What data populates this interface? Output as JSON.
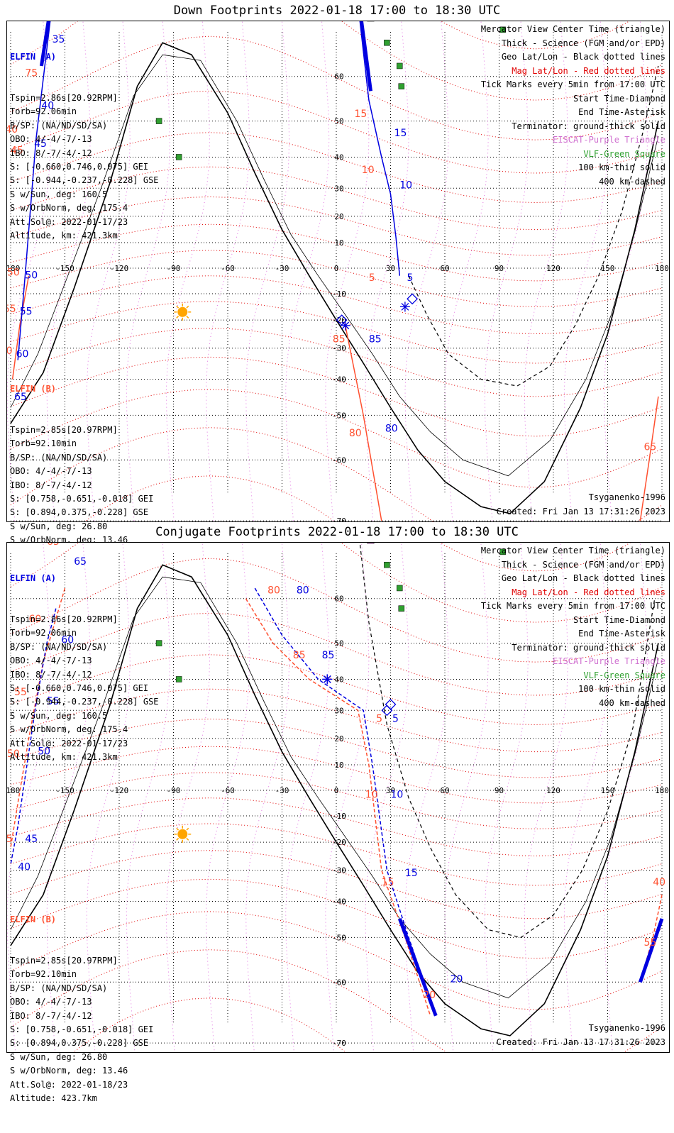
{
  "panels": [
    {
      "title": "Down Footprints 2022-01-18 17:00 to 18:30 UTC",
      "sat_a": {
        "name": "ELFIN (A)",
        "lines": [
          "Tspin=2.86s[20.92RPM]",
          "Torb=92.06min",
          "B/SP: (NA/ND/SD/SA)",
          "OBO: 4/-4/-7/-13",
          "IBO: 8/-7/-4/-12",
          "S: [-0.660,0.746,0.075] GEI",
          "S: [-0.944,-0.237,-0.228] GSE",
          "S w/Sun, deg: 160.5",
          "S w/OrbNorm, deg: 175.4",
          "Att.Sol@: 2022-01-17/23",
          "Altitude, km: 421.3km"
        ]
      },
      "sat_b": {
        "name": "ELFIN (B)",
        "lines": [
          "Tspin=2.85s[20.97RPM]",
          "Torb=92.10min",
          "B/SP: (NA/ND/SD/SA)",
          "OBO: 4/-4/-7/-13",
          "IBO: 8/-7/-4/-12",
          "S: [0.758,-0.651,-0.018] GEI",
          "S: [0.894,0.375,-0.228] GSE",
          "S w/Sun, deg: 26.80",
          "S w/OrbNorm, deg: 13.46",
          "Att.Sol@: 2022-01-18/23",
          "Altitude: 423.7km"
        ]
      },
      "model": "Tsyganenko-1996",
      "created": "Created: Fri Jan 13 17:31:26 2023"
    },
    {
      "title": "Conjugate Footprints 2022-01-18 17:00 to 18:30 UTC",
      "sat_a": {
        "name": "ELFIN (A)",
        "lines": [
          "Tspin=2.86s[20.92RPM]",
          "Torb=92.06min",
          "B/SP: (NA/ND/SD/SA)",
          "OBO: 4/-4/-7/-13",
          "IBO: 8/-7/-4/-12",
          "S: [-0.660,0.746,0.075] GEI",
          "S: [-0.944,-0.237,-0.228] GSE",
          "S w/Sun, deg: 160.5",
          "S w/OrbNorm, deg: 175.4",
          "Att.Sol@: 2022-01-17/23",
          "Altitude, km: 421.3km"
        ]
      },
      "sat_b": {
        "name": "ELFIN (B)",
        "lines": [
          "Tspin=2.85s[20.97RPM]",
          "Torb=92.10min",
          "B/SP: (NA/ND/SD/SA)",
          "OBO: 4/-4/-7/-13",
          "IBO: 8/-7/-4/-12",
          "S: [0.758,-0.651,-0.018] GEI",
          "S: [0.894,0.375,-0.228] GSE",
          "S w/Sun, deg: 26.80",
          "S w/OrbNorm, deg: 13.46",
          "Att.Sol@: 2022-01-18/23",
          "Altitude: 423.7km"
        ]
      },
      "model": "Tsyganenko-1996",
      "created": "Created: Fri Jan 13 17:31:26 2023"
    }
  ],
  "legend": [
    {
      "text": "Mercator View Center Time (triangle)",
      "color": "#000000"
    },
    {
      "text": "Thick - Science (FGM and/or EPD)",
      "color": "#000000"
    },
    {
      "text": "Geo Lat/Lon - Black dotted lines",
      "color": "#000000"
    },
    {
      "text": "Mag Lat/Lon - Red dotted lines",
      "color": "#e00000"
    },
    {
      "text": "Tick Marks every 5min from 17:00 UTC",
      "color": "#000000"
    },
    {
      "text": "Start Time-Diamond",
      "color": "#000000"
    },
    {
      "text": "End Time-Asterisk",
      "color": "#000000"
    },
    {
      "text": "Terminator: ground-thick solid",
      "color": "#000000"
    },
    {
      "text": "EISCAT-Purple Triangle",
      "color": "#d070d0"
    },
    {
      "text": "VLF-Green Square",
      "color": "#30a030"
    },
    {
      "text": "100 km-thin solid",
      "color": "#000000"
    },
    {
      "text": "400 km-dashed",
      "color": "#000000"
    }
  ],
  "axes": {
    "lon_ticks": [
      "-180",
      "-150",
      "-120",
      "-90",
      "-60",
      "-30",
      "0",
      "30",
      "60",
      "90",
      "120",
      "150",
      "180"
    ],
    "lat_ticks": [
      "70",
      "60",
      "50",
      "40",
      "30",
      "20",
      "10",
      "0",
      "-10",
      "-20",
      "-30",
      "-40",
      "-50",
      "-60",
      "-70"
    ]
  },
  "colors": {
    "elfin_a": "#0000e0",
    "elfin_b": "#ff5030",
    "mag_grid": "#e00000",
    "geo_grid": "#000000",
    "eiscat": "#d070d0",
    "vlf": "#30a030",
    "sun": "#ffa500"
  },
  "stations": {
    "eiscat": [
      [
        19,
        69.6
      ],
      [
        27,
        77
      ]
    ],
    "vlf": [
      [
        -109,
        71
      ],
      [
        -98,
        50
      ],
      [
        -87,
        40
      ],
      [
        28,
        66
      ],
      [
        35,
        62
      ],
      [
        36,
        58
      ],
      [
        92,
        68
      ]
    ]
  },
  "down": {
    "terminator": [
      [
        -180,
        -52
      ],
      [
        -162,
        -38
      ],
      [
        -145,
        -8
      ],
      [
        -125,
        32
      ],
      [
        -110,
        58
      ],
      [
        -96,
        66
      ],
      [
        -80,
        64
      ],
      [
        -60,
        52
      ],
      [
        -45,
        35
      ],
      [
        -30,
        15
      ],
      [
        -15,
        -3
      ],
      [
        0,
        -20
      ],
      [
        15,
        -35
      ],
      [
        30,
        -48
      ],
      [
        45,
        -58
      ],
      [
        60,
        -64
      ],
      [
        80,
        -68
      ],
      [
        96,
        -69
      ],
      [
        115,
        -64
      ],
      [
        135,
        -48
      ],
      [
        150,
        -25
      ],
      [
        165,
        15
      ],
      [
        178,
        50
      ]
    ],
    "term100": [
      [
        -180,
        -48
      ],
      [
        -165,
        -32
      ],
      [
        -150,
        -6
      ],
      [
        -130,
        30
      ],
      [
        -112,
        56
      ],
      [
        -96,
        64
      ],
      [
        -75,
        63
      ],
      [
        -55,
        50
      ],
      [
        -40,
        33
      ],
      [
        -25,
        13
      ],
      [
        -10,
        -3
      ],
      [
        5,
        -18
      ],
      [
        20,
        -32
      ],
      [
        35,
        -45
      ],
      [
        52,
        -54
      ],
      [
        70,
        -60
      ],
      [
        95,
        -63
      ],
      [
        118,
        -56
      ],
      [
        138,
        -40
      ],
      [
        152,
        -18
      ],
      [
        165,
        14
      ],
      [
        178,
        46
      ]
    ],
    "term400": [
      [
        40,
        -3
      ],
      [
        50,
        -18
      ],
      [
        62,
        -32
      ],
      [
        80,
        -40
      ],
      [
        100,
        -42
      ],
      [
        118,
        -36
      ],
      [
        132,
        -22
      ],
      [
        145,
        -3
      ],
      [
        158,
        22
      ],
      [
        170,
        48
      ],
      [
        178,
        62
      ]
    ],
    "sun": [
      -85,
      -17
    ],
    "a_track": {
      "points": [
        [
          -155,
          75
        ],
        [
          -166,
          45
        ],
        [
          -172,
          -3
        ],
        [
          -176,
          -34
        ]
      ],
      "thick": [
        [
          -155,
          75
        ],
        [
          -163,
          62
        ]
      ]
    },
    "b_track": {
      "points": [
        [
          -170,
          -3
        ],
        [
          -175,
          -22
        ],
        [
          -179,
          -40
        ]
      ]
    },
    "a_track2": {
      "points": [
        [
          8,
          78
        ],
        [
          18,
          55
        ],
        [
          25,
          40
        ],
        [
          30,
          28
        ],
        [
          33,
          12
        ],
        [
          35,
          -3
        ]
      ],
      "thick": [
        [
          8,
          78
        ],
        [
          19,
          57
        ]
      ]
    },
    "b_track2": {
      "points": [
        [
          5,
          -22
        ],
        [
          15,
          -50
        ],
        [
          25,
          -70
        ]
      ]
    },
    "b_track3": {
      "points": [
        [
          178,
          -45
        ],
        [
          173,
          -60
        ],
        [
          168,
          -70
        ]
      ]
    },
    "a_labels": [
      {
        "t": "30",
        "p": [
          -152,
          78
        ]
      },
      {
        "t": "35",
        "p": [
          -157,
          66
        ]
      },
      {
        "t": "40",
        "p": [
          -163,
          53
        ]
      },
      {
        "t": "45",
        "p": [
          -167,
          43
        ]
      },
      {
        "t": "50",
        "p": [
          -172,
          -4
        ]
      },
      {
        "t": "55",
        "p": [
          -175,
          -18
        ]
      },
      {
        "t": "60",
        "p": [
          -177,
          -33
        ]
      },
      {
        "t": "65",
        "p": [
          -178,
          -46
        ]
      },
      {
        "t": "20",
        "p": [
          24,
          70
        ]
      },
      {
        "t": "15",
        "p": [
          32,
          46
        ]
      },
      {
        "t": "10",
        "p": [
          35,
          30
        ]
      },
      {
        "t": "5",
        "p": [
          39,
          -5
        ]
      },
      {
        "t": "85",
        "p": [
          18,
          -28
        ]
      },
      {
        "t": "80",
        "p": [
          27,
          -54
        ]
      },
      {
        "t": "70",
        "p": [
          171,
          -74
        ]
      }
    ],
    "b_labels": [
      {
        "t": "75",
        "p": [
          -172,
          60
        ]
      },
      {
        "t": "40",
        "p": [
          -183,
          47
        ]
      },
      {
        "t": "45",
        "p": [
          -180,
          41
        ]
      },
      {
        "t": "50",
        "p": [
          -182,
          -3
        ]
      },
      {
        "t": "55",
        "p": [
          -184,
          -17
        ]
      },
      {
        "t": "60",
        "p": [
          -186,
          -32
        ]
      },
      {
        "t": "20",
        "p": [
          4,
          73
        ]
      },
      {
        "t": "15",
        "p": [
          10,
          51
        ]
      },
      {
        "t": "10",
        "p": [
          14,
          35
        ]
      },
      {
        "t": "5",
        "p": [
          18,
          -5
        ]
      },
      {
        "t": "85",
        "p": [
          -2,
          -28
        ]
      },
      {
        "t": "80",
        "p": [
          7,
          -55
        ]
      },
      {
        "t": "65",
        "p": [
          170,
          -58
        ]
      }
    ],
    "start": [
      [
        42,
        -12
      ],
      [
        3,
        -20
      ]
    ],
    "end": [
      [
        38,
        -15
      ],
      [
        5,
        -22
      ]
    ],
    "center": [
      [
        17,
        82
      ],
      [
        22,
        70
      ]
    ]
  },
  "conj": {
    "terminator": [
      [
        -180,
        -52
      ],
      [
        -162,
        -38
      ],
      [
        -145,
        -8
      ],
      [
        -125,
        32
      ],
      [
        -110,
        58
      ],
      [
        -96,
        66
      ],
      [
        -80,
        64
      ],
      [
        -60,
        52
      ],
      [
        -45,
        35
      ],
      [
        -30,
        15
      ],
      [
        -15,
        -3
      ],
      [
        0,
        -20
      ],
      [
        15,
        -35
      ],
      [
        30,
        -48
      ],
      [
        45,
        -58
      ],
      [
        60,
        -64
      ],
      [
        80,
        -68
      ],
      [
        96,
        -69
      ],
      [
        115,
        -64
      ],
      [
        135,
        -48
      ],
      [
        150,
        -25
      ],
      [
        165,
        15
      ],
      [
        178,
        50
      ]
    ],
    "term100": [
      [
        -180,
        -48
      ],
      [
        -165,
        -32
      ],
      [
        -150,
        -6
      ],
      [
        -130,
        30
      ],
      [
        -112,
        56
      ],
      [
        -96,
        64
      ],
      [
        -75,
        63
      ],
      [
        -55,
        50
      ],
      [
        -40,
        33
      ],
      [
        -25,
        13
      ],
      [
        -10,
        -3
      ],
      [
        5,
        -18
      ],
      [
        20,
        -32
      ],
      [
        35,
        -45
      ],
      [
        52,
        -54
      ],
      [
        70,
        -60
      ],
      [
        95,
        -63
      ],
      [
        118,
        -56
      ],
      [
        138,
        -40
      ],
      [
        152,
        -18
      ],
      [
        165,
        14
      ],
      [
        178,
        46
      ]
    ],
    "term400": [
      [
        8,
        78
      ],
      [
        18,
        55
      ],
      [
        28,
        25
      ],
      [
        40,
        -3
      ],
      [
        52,
        -22
      ],
      [
        66,
        -38
      ],
      [
        84,
        -48
      ],
      [
        102,
        -50
      ],
      [
        120,
        -44
      ],
      [
        136,
        -30
      ],
      [
        150,
        -8
      ],
      [
        164,
        24
      ],
      [
        176,
        60
      ]
    ],
    "sun": [
      -85,
      -17
    ],
    "a_track": {
      "points": [
        [
          -155,
          58
        ],
        [
          -160,
          50
        ],
        [
          -166,
          32
        ],
        [
          -171,
          10
        ],
        [
          -176,
          -14
        ],
        [
          -180,
          -28
        ]
      ]
    },
    "b_track": {
      "points": [
        [
          -150,
          62
        ],
        [
          -162,
          45
        ],
        [
          -170,
          20
        ],
        [
          -176,
          -5
        ],
        [
          -180,
          -22
        ]
      ]
    },
    "a_track2": {
      "points": [
        [
          -45,
          62
        ],
        [
          -30,
          52
        ],
        [
          -10,
          40
        ],
        [
          15,
          30
        ],
        [
          20,
          10
        ],
        [
          28,
          -30
        ],
        [
          40,
          -50
        ],
        [
          55,
          -66
        ]
      ],
      "thick": [
        [
          35,
          -45
        ],
        [
          55,
          -66
        ]
      ]
    },
    "b_track2": {
      "points": [
        [
          -50,
          60
        ],
        [
          -35,
          50
        ],
        [
          -15,
          40
        ],
        [
          12,
          30
        ],
        [
          18,
          10
        ],
        [
          25,
          -30
        ],
        [
          38,
          -50
        ],
        [
          52,
          -66
        ]
      ]
    },
    "b_track3": {
      "points": [
        [
          180,
          -38
        ],
        [
          175,
          -50
        ],
        [
          168,
          -60
        ]
      ],
      "thick": [
        [
          180,
          -45
        ],
        [
          168,
          -60
        ]
      ]
    },
    "a_labels": [
      {
        "t": "65",
        "p": [
          -145,
          66
        ]
      },
      {
        "t": "60",
        "p": [
          -152,
          50
        ]
      },
      {
        "t": "55",
        "p": [
          -160,
          32
        ]
      },
      {
        "t": "50",
        "p": [
          -165,
          14
        ]
      },
      {
        "t": "45",
        "p": [
          -172,
          -20
        ]
      },
      {
        "t": "40",
        "p": [
          -176,
          -30
        ]
      },
      {
        "t": "80",
        "p": [
          -22,
          61
        ]
      },
      {
        "t": "85",
        "p": [
          -8,
          46
        ]
      },
      {
        "t": "5",
        "p": [
          31,
          26
        ]
      },
      {
        "t": "10",
        "p": [
          30,
          -3
        ]
      },
      {
        "t": "15",
        "p": [
          38,
          -32
        ]
      },
      {
        "t": "20",
        "p": [
          63,
          -60
        ]
      },
      {
        "t": "55",
        "p": [
          185,
          -52
        ]
      }
    ],
    "b_labels": [
      {
        "t": "65",
        "p": [
          -160,
          69
        ]
      },
      {
        "t": "60",
        "p": [
          -170,
          55
        ]
      },
      {
        "t": "55",
        "p": [
          -178,
          35
        ]
      },
      {
        "t": "50",
        "p": [
          -182,
          13
        ]
      },
      {
        "t": "45",
        "p": [
          -186,
          -20
        ]
      },
      {
        "t": "80",
        "p": [
          -38,
          61
        ]
      },
      {
        "t": "85",
        "p": [
          -24,
          46
        ]
      },
      {
        "t": "5",
        "p": [
          22,
          26
        ]
      },
      {
        "t": "10",
        "p": [
          16,
          -3
        ]
      },
      {
        "t": "15",
        "p": [
          25,
          -35
        ]
      },
      {
        "t": "20",
        "p": [
          48,
          -63
        ]
      },
      {
        "t": "40",
        "p": [
          175,
          -35
        ]
      },
      {
        "t": "55",
        "p": [
          170,
          -52
        ]
      }
    ],
    "start": [
      [
        30,
        32
      ],
      [
        28,
        30
      ]
    ],
    "end": [
      [
        -5,
        40
      ],
      [
        -5,
        40
      ]
    ],
    "center": [
      [
        18,
        82
      ],
      [
        22,
        70
      ]
    ]
  }
}
